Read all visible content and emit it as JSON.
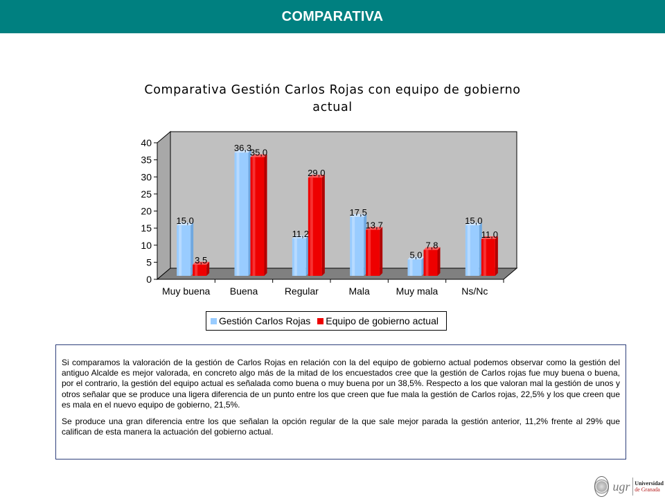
{
  "header": {
    "title": "COMPARATIVA",
    "background": "#008080"
  },
  "chart_data": {
    "type": "bar",
    "title_line1": "Comparativa Gestión Carlos Rojas con equipo de gobierno",
    "title_line2": "actual",
    "categories": [
      "Muy buena",
      "Buena",
      "Regular",
      "Mala",
      "Muy mala",
      "Ns/Nc"
    ],
    "series": [
      {
        "name": "Gestión Carlos Rojas",
        "color": "#99ccff",
        "values": [
          15.0,
          36.3,
          11.2,
          17.5,
          5.0,
          15.0
        ],
        "labels": [
          "15,0",
          "36,3",
          "11,2",
          "17,5",
          "5,0",
          "15,0"
        ]
      },
      {
        "name": "Equipo de gobierno actual",
        "color": "#ee0000",
        "values": [
          3.5,
          35.0,
          29.0,
          13.7,
          7.8,
          11.0
        ],
        "labels": [
          "3,5",
          "35,0",
          "29,0",
          "13,7",
          "7,8",
          "11,0"
        ]
      }
    ],
    "ylim": [
      0,
      40
    ],
    "yticks": [
      "0",
      "5",
      "10",
      "15",
      "20",
      "25",
      "30",
      "35",
      "40"
    ],
    "wall_color": "#c0c0c0",
    "floor_color": "#808080",
    "legend_position": "bottom"
  },
  "text_panel": {
    "paragraph1": "Si comparamos la valoración de la gestión de Carlos Rojas en relación con la del equipo de gobierno actual podemos observar como la gestión del antiguo Alcalde es mejor valorada, en concreto algo más de la mitad de los encuestados cree que la gestión de Carlos rojas fue muy buena o buena, por el contrario, la gestión del equipo actual es señalada como buena o muy buena por un 38,5%. Respecto a los que valoran mal la gestión de unos y otros señalar que se produce una ligera diferencia de un punto entre los que creen que fue mala la gestión de Carlos rojas, 22,5% y los que creen que es mala en el nuevo equipo de gobierno, 21,5%.",
    "paragraph2": "Se produce una gran diferencia entre los que señalan la opción regular de la que sale mejor parada la gestión anterior, 11,2% frente al 29% que califican de esta manera la actuación del gobierno actual."
  },
  "logo": {
    "mark": "ugr",
    "line1": "Universidad",
    "line2": "de Granada"
  }
}
